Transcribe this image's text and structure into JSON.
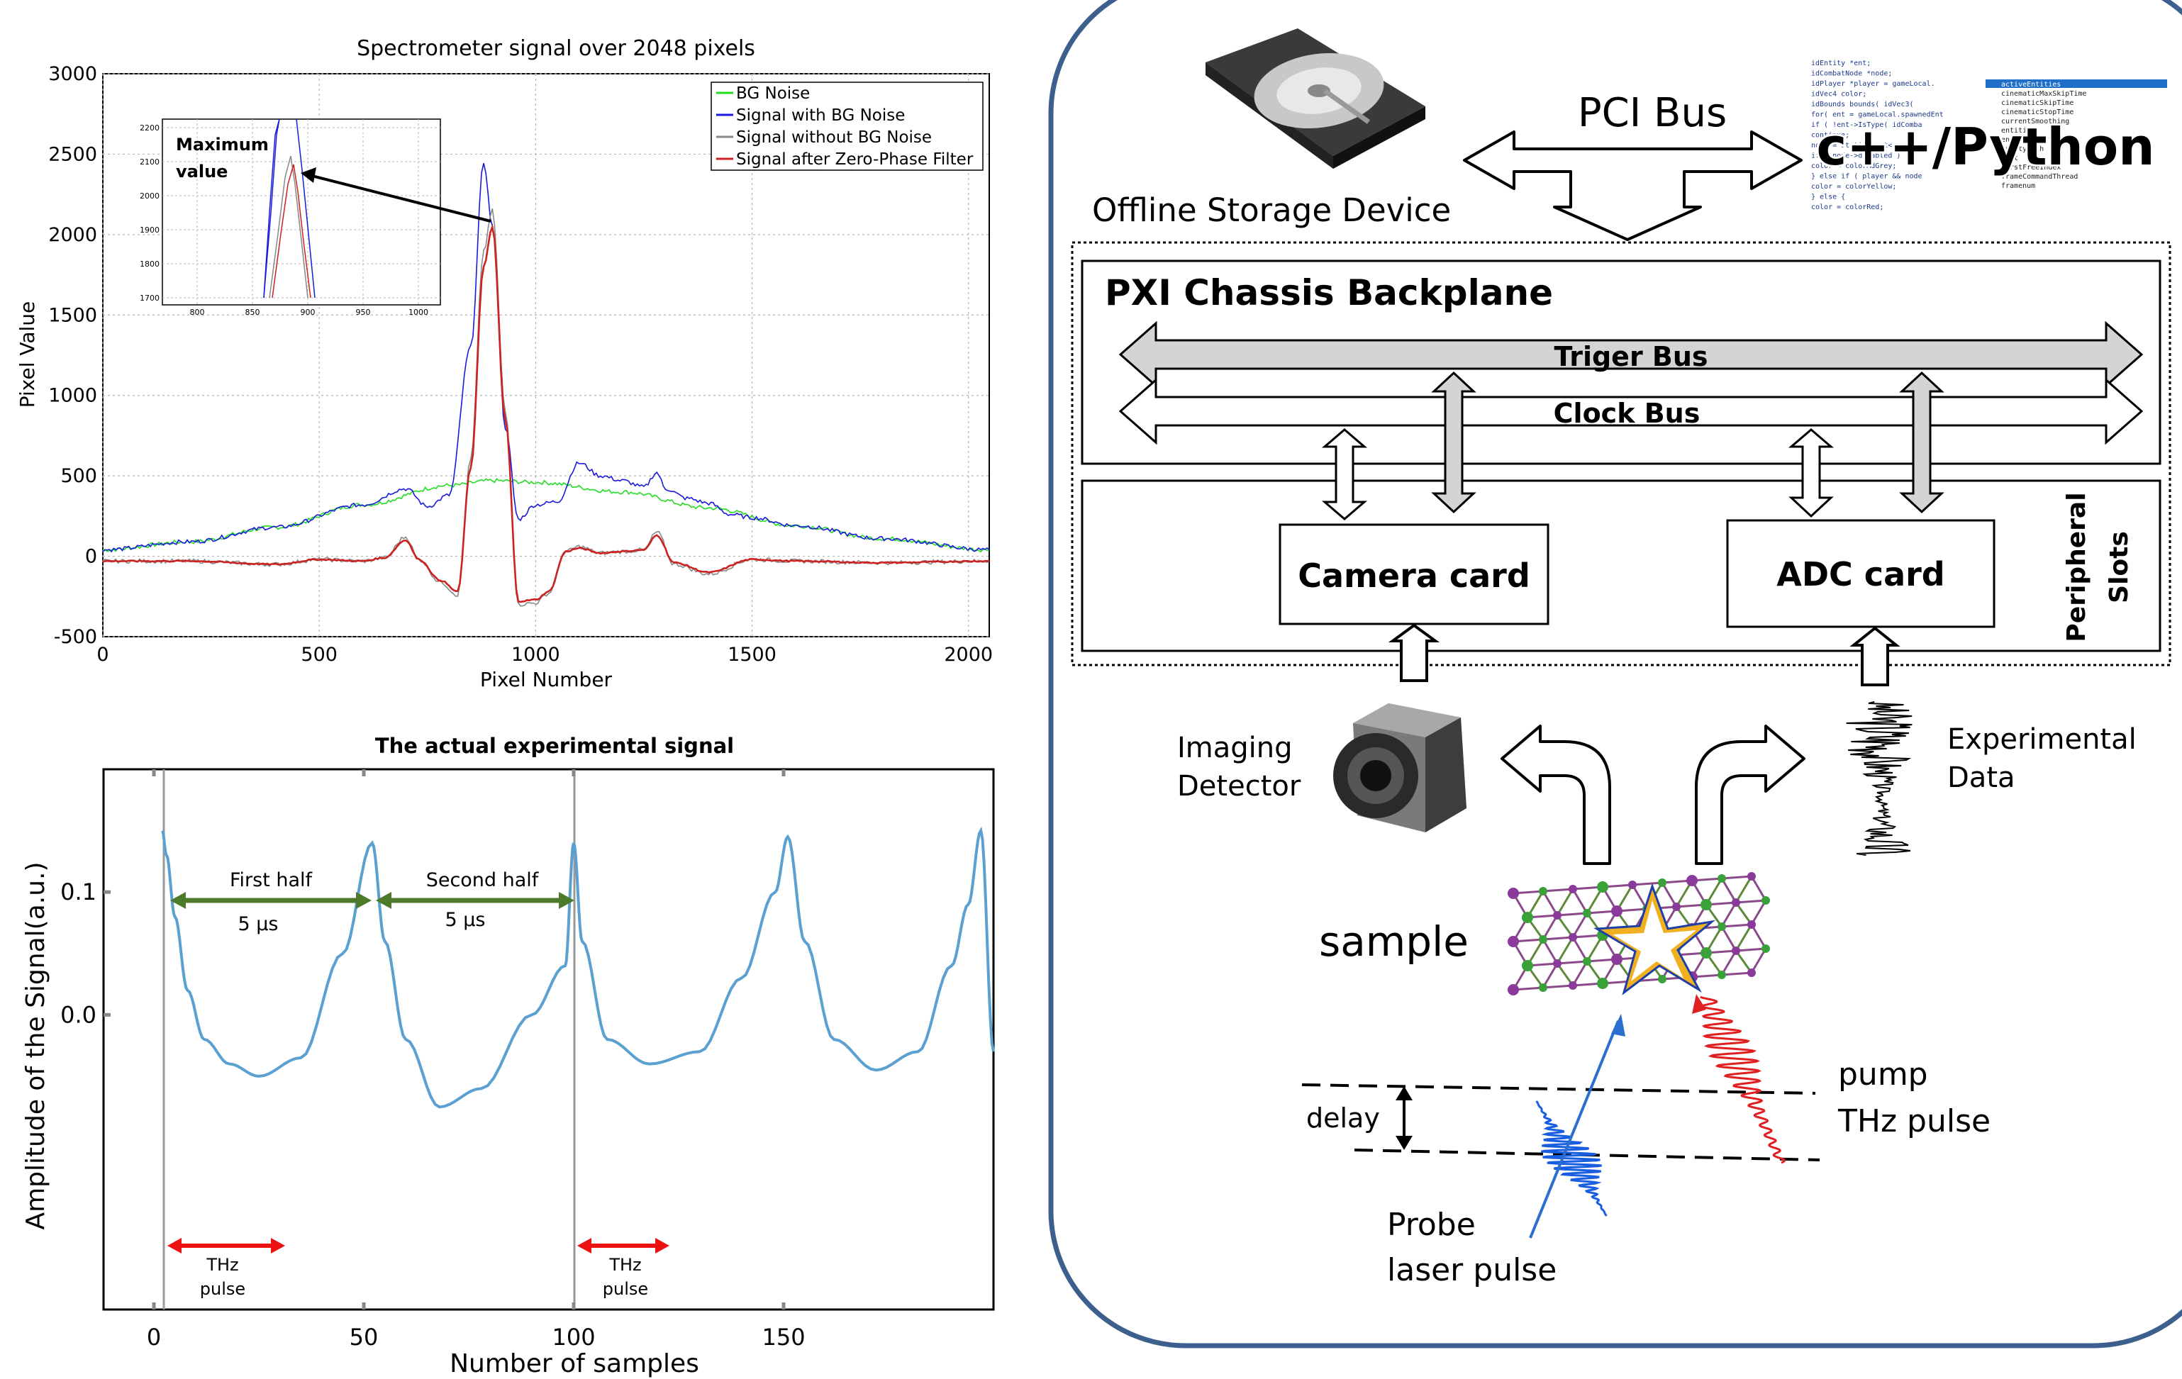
{
  "top_chart": {
    "title": "Spectrometer signal over 2048 pixels",
    "xlabel": "Pixel Number",
    "ylabel": "Pixel Value",
    "xticks": [
      "0",
      "500",
      "1000",
      "1500",
      "2000"
    ],
    "yticks": [
      "3000",
      "2500",
      "2000",
      "1500",
      "1000",
      "500",
      "0",
      "-500"
    ],
    "legend": [
      "BG Noise",
      "Signal with BG Noise",
      "Signal without BG Noise",
      "Signal after Zero-Phase Filter"
    ],
    "inset_annotation": "Maximum value",
    "inset_xticks": [
      "800",
      "850",
      "900",
      "950",
      "1000"
    ],
    "inset_yticks": [
      "2200",
      "2100",
      "2000",
      "1900",
      "1800",
      "1700"
    ]
  },
  "chart_data": [
    {
      "type": "line",
      "title": "Spectrometer signal over 2048 pixels",
      "xlabel": "Pixel Number",
      "ylabel": "Pixel Value",
      "xlim": [
        0,
        2048
      ],
      "ylim": [
        -500,
        3000
      ],
      "grid": true,
      "legend_position": "top-right",
      "series": [
        {
          "name": "BG Noise",
          "color": "#22dd22",
          "x": [
            0,
            200,
            400,
            600,
            800,
            900,
            1000,
            1200,
            1400,
            1600,
            1800,
            2048
          ],
          "y": [
            40,
            90,
            180,
            320,
            440,
            470,
            460,
            400,
            300,
            190,
            110,
            40
          ]
        },
        {
          "name": "Signal with BG Noise",
          "color": "#1a1adc",
          "x": [
            0,
            200,
            400,
            600,
            700,
            750,
            800,
            850,
            880,
            900,
            930,
            960,
            1000,
            1050,
            1100,
            1150,
            1200,
            1250,
            1280,
            1300,
            1350,
            1400,
            1450,
            1500,
            1600,
            1800,
            2048
          ],
          "y": [
            40,
            90,
            180,
            320,
            420,
            310,
            380,
            1300,
            2450,
            2050,
            800,
            230,
            320,
            340,
            580,
            500,
            470,
            430,
            520,
            420,
            360,
            330,
            260,
            240,
            190,
            110,
            40
          ]
        },
        {
          "name": "Signal without BG Noise",
          "color": "#888888",
          "x": [
            0,
            200,
            400,
            500,
            600,
            650,
            700,
            730,
            780,
            820,
            850,
            880,
            900,
            930,
            960,
            1000,
            1030,
            1070,
            1100,
            1150,
            1200,
            1250,
            1280,
            1320,
            1400,
            1500,
            1600,
            1800,
            2048
          ],
          "y": [
            -30,
            -30,
            -50,
            -20,
            -30,
            -10,
            120,
            -20,
            -160,
            -240,
            600,
            1900,
            2150,
            900,
            -300,
            -290,
            -230,
            30,
            60,
            20,
            30,
            40,
            150,
            -50,
            -110,
            -20,
            -30,
            -40,
            -30
          ]
        },
        {
          "name": "Signal after Zero-Phase Filter",
          "color": "#cc2222",
          "x": [
            0,
            200,
            400,
            500,
            600,
            650,
            700,
            730,
            780,
            820,
            850,
            880,
            900,
            930,
            960,
            1000,
            1030,
            1070,
            1100,
            1150,
            1200,
            1250,
            1280,
            1320,
            1400,
            1500,
            1600,
            1800,
            2048
          ],
          "y": [
            -30,
            -30,
            -50,
            -20,
            -30,
            -10,
            100,
            -20,
            -150,
            -220,
            550,
            1800,
            2050,
            850,
            -280,
            -270,
            -220,
            30,
            50,
            20,
            30,
            40,
            130,
            -40,
            -100,
            -20,
            -30,
            -40,
            -30
          ]
        }
      ]
    },
    {
      "type": "line",
      "title": "The actual experimental signal",
      "xlabel": "Number of samples",
      "ylabel": "Amplitude of the Signal(a.u.)",
      "xticks": [
        "0",
        "50",
        "100",
        "150"
      ],
      "yticks": [
        "0.1",
        "0.0"
      ],
      "xlim": [
        -12,
        200
      ],
      "ylim": [
        -0.24,
        0.2
      ],
      "series": [
        {
          "name": "",
          "color": "#5aa0d0",
          "x": [
            2,
            3,
            5,
            8,
            12,
            18,
            25,
            35,
            45,
            52,
            55,
            60,
            68,
            78,
            90,
            98,
            100,
            102,
            108,
            118,
            130,
            140,
            148,
            151,
            155,
            162,
            172,
            182,
            190,
            194,
            197,
            200
          ],
          "y": [
            0.15,
            0.13,
            0.08,
            0.02,
            -0.02,
            -0.04,
            -0.05,
            -0.035,
            0.05,
            0.14,
            0.06,
            -0.02,
            -0.075,
            -0.06,
            0.0,
            0.04,
            0.14,
            0.06,
            -0.02,
            -0.04,
            -0.03,
            0.03,
            0.1,
            0.145,
            0.06,
            -0.02,
            -0.045,
            -0.03,
            0.04,
            0.09,
            0.15,
            -0.03
          ]
        }
      ]
    }
  ],
  "bottom_chart": {
    "title": "The actual experimental signal",
    "xlabel": "Number of samples",
    "ylabel": "Amplitude of the Signal(a.u.)",
    "xticks": [
      "0",
      "50",
      "100",
      "150"
    ],
    "yticks": [
      "0.1",
      "0.0"
    ],
    "first_half": "First half",
    "second_half": "Second half",
    "duration1": "5 μs",
    "duration2": "5 μs",
    "thz_pulse": "THz",
    "thz_pulse2": "pulse"
  },
  "diagram": {
    "pci_bus": "PCI Bus",
    "offline_storage": "Offline Storage Device",
    "code_label": "c++/Python",
    "backplane": "PXI Chassis Backplane",
    "trigger_bus": "Triger Bus",
    "clock_bus": "Clock Bus",
    "camera_card": "Camera card",
    "adc_card": "ADC card",
    "peripheral": "Peripheral",
    "slots": "Slots",
    "imaging": "Imaging",
    "detector": "Detector",
    "experimental": "Experimental",
    "data": "Data",
    "sample": "sample",
    "delay": "delay",
    "pump": "pump",
    "thz_pulse": "THz pulse",
    "probe": "Probe",
    "laser_pulse": "laser pulse"
  },
  "code_lines": [
    "idEntity         *ent;",
    "idCombatNode     *node;",
    "idPlayer         *player = gameLocal.",
    "idVec4           color;",
    "idBounds         bounds( idVec3(",
    "for( ent = gameLocal.spawnedEnt",
    "  if ( !ent->IsType( idComba",
    "    continue;",
    "  node = static_cast<",
    "  if ( node->disabled )",
    "    color = colorMdGrey;",
    "  } else if ( player && node",
    "    color = colorYellow;",
    "  } else {",
    "    color = colorRed;"
  ],
  "autocomplete": [
    "activeEntities",
    "cinematicMaxSkipTime",
    "cinematicSkipTime",
    "cinematicStopTime",
    "currentSmoothing",
    "entities",
    "entityDefBits",
    "entityHash",
    "fast",
    "firstFreeIndex",
    "frameCommandThread",
    "framenum"
  ]
}
